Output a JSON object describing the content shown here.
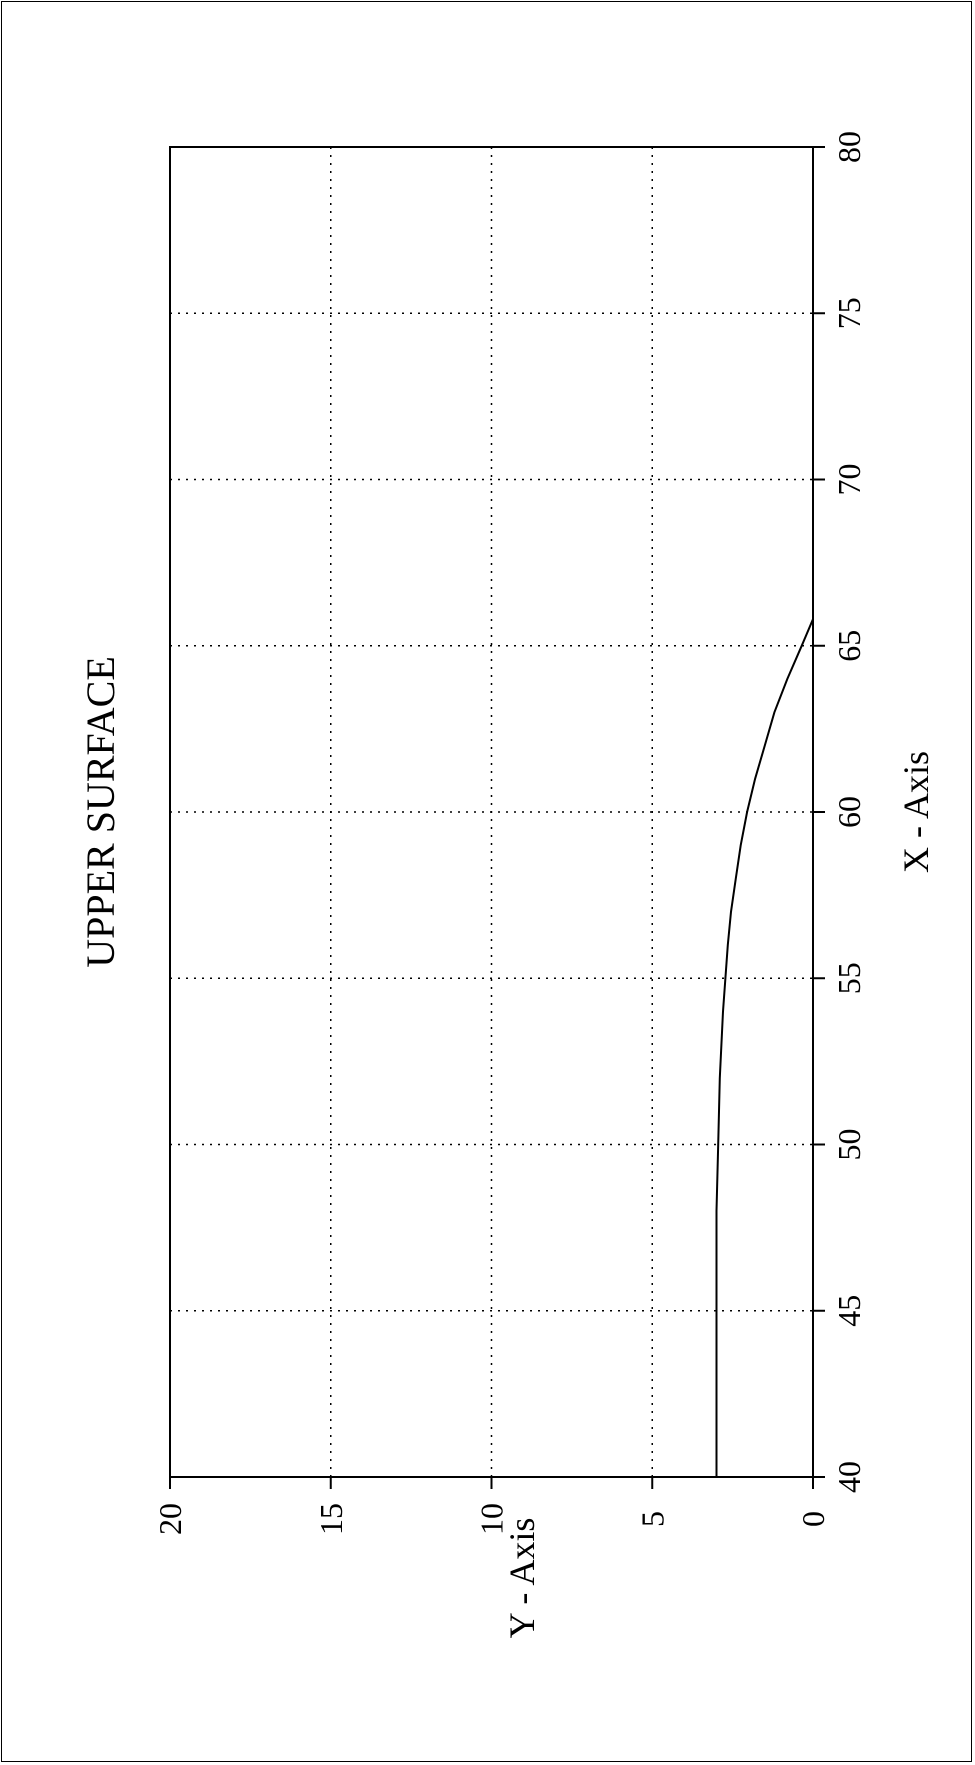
{
  "chart_data": {
    "type": "line",
    "title": "UPPER SURFACE",
    "xlabel": "X - Axis",
    "ylabel": "Y - Axis",
    "xlim": [
      40,
      80
    ],
    "ylim": [
      0,
      20
    ],
    "x_ticks": [
      40,
      45,
      50,
      55,
      60,
      65,
      70,
      75,
      80
    ],
    "y_ticks": [
      0,
      5,
      10,
      15,
      20
    ],
    "x_tick_labels": [
      "40",
      "45",
      "50",
      "55",
      "60",
      "65",
      "70",
      "75",
      "80"
    ],
    "y_tick_labels": [
      "0",
      "5",
      "10",
      "15",
      "20"
    ],
    "grid": true,
    "grid_style": "dotted",
    "orientation": "rotated 90 degrees clockwise",
    "series": [
      {
        "color": "#000000",
        "x": [
          40,
          44,
          48,
          50,
          52,
          54,
          56,
          57,
          58,
          59,
          60,
          61,
          62,
          63,
          64,
          65,
          65.8
        ],
        "y": [
          3.0,
          3.0,
          3.0,
          2.95,
          2.9,
          2.8,
          2.65,
          2.55,
          2.4,
          2.25,
          2.05,
          1.8,
          1.5,
          1.2,
          0.8,
          0.35,
          0.0
        ]
      }
    ]
  }
}
